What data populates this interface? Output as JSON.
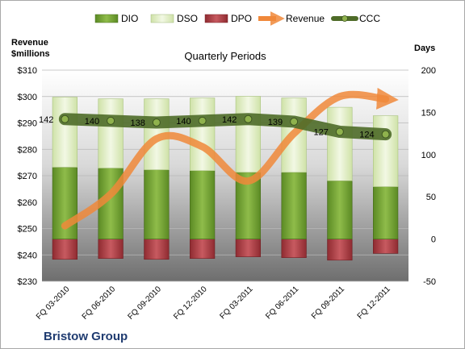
{
  "chart_data": {
    "type": "bar",
    "title": "Quarterly Periods",
    "company": "Bristow Group",
    "left_axis_label_line1": "Revenue",
    "left_axis_label_line2": "$millions",
    "right_axis_label": "Days",
    "categories": [
      "FQ 03-2010",
      "FQ 06-2010",
      "FQ 09-2010",
      "FQ 12-2010",
      "FQ 03-2011",
      "FQ 06-2011",
      "FQ 09-2011",
      "FQ 12-2011"
    ],
    "left_axis": {
      "min": 230,
      "max": 310,
      "step": 10,
      "ticks": [
        "$230",
        "$240",
        "$250",
        "$260",
        "$270",
        "$280",
        "$290",
        "$300",
        "$310"
      ]
    },
    "right_axis": {
      "min": -50,
      "max": 200,
      "step": 50,
      "ticks": [
        "-50",
        "0",
        "50",
        "100",
        "150",
        "200"
      ]
    },
    "legend": [
      "DIO",
      "DSO",
      "DPO",
      "Revenue",
      "CCC"
    ],
    "series": [
      {
        "name": "DIO",
        "axis": "right",
        "values": [
          85,
          84,
          82,
          81,
          79,
          79,
          69,
          62
        ],
        "color": "#6b9a2f"
      },
      {
        "name": "DSO",
        "axis": "right",
        "values": [
          83,
          82,
          84,
          86,
          90,
          88,
          87,
          84
        ],
        "color": "#e2efc6"
      },
      {
        "name": "DPO",
        "axis": "right",
        "values": [
          -24,
          -23,
          -24,
          -23,
          -21,
          -22,
          -25,
          -17
        ],
        "color": "#a8363d"
      },
      {
        "name": "Revenue",
        "axis": "left",
        "values": [
          251,
          263,
          284,
          281,
          268,
          286,
          300,
          299
        ],
        "color": "#f0883a"
      },
      {
        "name": "CCC",
        "axis": "right",
        "values": [
          142,
          140,
          138,
          140,
          142,
          139,
          127,
          124
        ],
        "labels": [
          "142",
          "140",
          "138",
          "140",
          "142",
          "139",
          "127",
          "124"
        ],
        "color": "#4e6b28"
      }
    ]
  }
}
